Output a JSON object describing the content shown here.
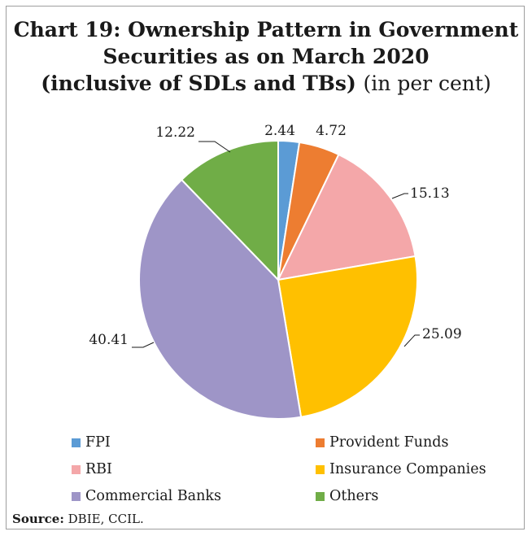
{
  "chart_data": {
    "type": "pie",
    "title_line1": "Chart 19: Ownership Pattern in Government",
    "title_line2": "Securities as on March 2020",
    "title_line3": "(inclusive of SDLs and TBs)",
    "title_unit": "(in per cent)",
    "slices": [
      {
        "label": "FPI",
        "value": 2.44,
        "value_label": "2.44",
        "color": "#5b9bd5"
      },
      {
        "label": "Provident Funds",
        "value": 4.72,
        "value_label": "4.72",
        "color": "#ed7d31"
      },
      {
        "label": "RBI",
        "value": 15.13,
        "value_label": "15.13",
        "color": "#f4a7a9"
      },
      {
        "label": "Insurance Companies",
        "value": 25.09,
        "value_label": "25.09",
        "color": "#ffc000"
      },
      {
        "label": "Commercial Banks",
        "value": 40.41,
        "value_label": "40.41",
        "color": "#9e95c7"
      },
      {
        "label": "Others",
        "value": 12.22,
        "value_label": "12.22",
        "color": "#70ad47"
      }
    ],
    "legend_placement": "bottom",
    "start": "12 o'clock, clockwise"
  },
  "source": {
    "label": "Source:",
    "text": "DBIE, CCIL."
  }
}
